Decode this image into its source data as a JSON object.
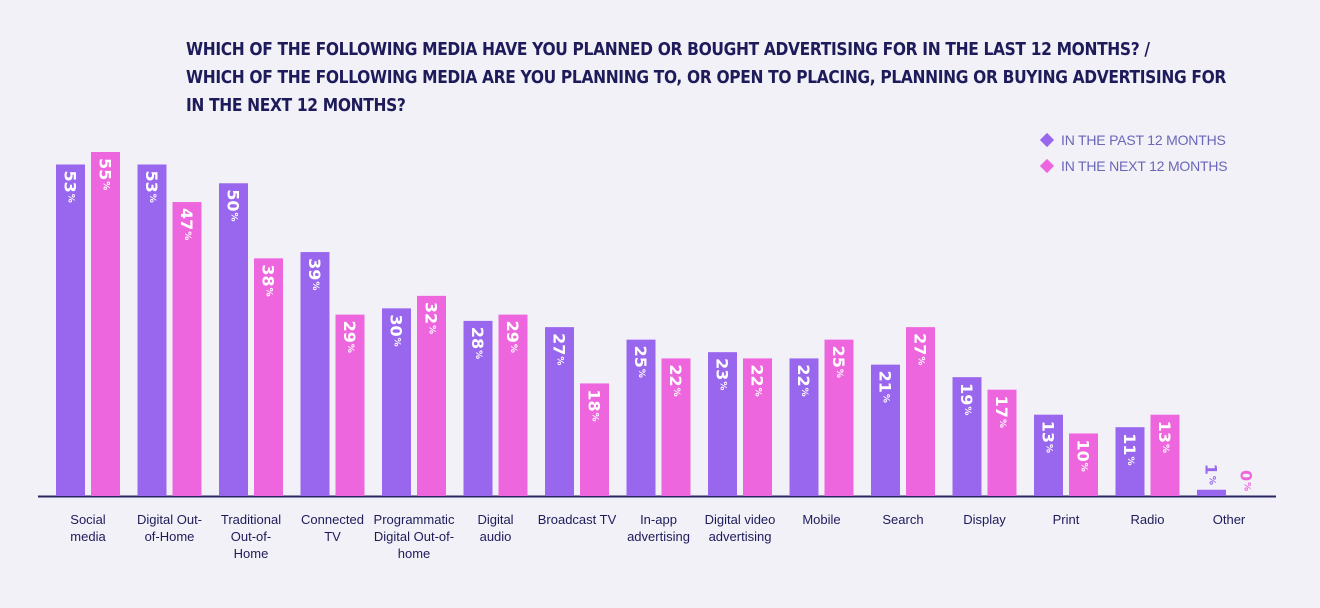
{
  "title_lines": [
    "WHICH OF THE FOLLOWING MEDIA HAVE YOU PLANNED OR BOUGHT ADVERTISING FOR IN THE LAST 12 MONTHS? /",
    "WHICH OF THE FOLLOWING MEDIA ARE YOU PLANNING TO, OR OPEN TO PLACING, PLANNING OR BUYING ADVERTISING FOR",
    "IN THE NEXT 12 MONTHS?"
  ],
  "legend": {
    "past": "IN THE PAST 12 MONTHS",
    "next": "IN THE NEXT 12 MONTHS"
  },
  "colors": {
    "past": "#9966ee",
    "next": "#ee66dd",
    "axis": "#2a2660",
    "label": "#1e1b5a",
    "background": "#f2f1f7"
  },
  "chart_data": {
    "type": "bar",
    "unit": "%",
    "categories": [
      [
        "Social",
        "media"
      ],
      [
        "Digital Out-",
        "of-Home"
      ],
      [
        "Traditional",
        "Out-of-",
        "Home"
      ],
      [
        "Connected",
        "TV"
      ],
      [
        "Programmatic",
        "Digital Out-of-",
        "home"
      ],
      [
        "Digital",
        "audio"
      ],
      [
        "Broadcast TV"
      ],
      [
        "In-app",
        "advertising"
      ],
      [
        "Digital video",
        "advertising"
      ],
      [
        "Mobile"
      ],
      [
        "Search"
      ],
      [
        "Display"
      ],
      [
        "Print"
      ],
      [
        "Radio"
      ],
      [
        "Other"
      ]
    ],
    "series": [
      {
        "name": "IN THE PAST 12 MONTHS",
        "values": [
          53,
          53,
          50,
          39,
          30,
          28,
          27,
          25,
          23,
          22,
          21,
          19,
          13,
          11,
          1
        ]
      },
      {
        "name": "IN THE NEXT 12 MONTHS",
        "values": [
          55,
          47,
          38,
          29,
          32,
          29,
          18,
          22,
          22,
          25,
          27,
          17,
          10,
          13,
          0
        ]
      }
    ],
    "ylim": [
      0,
      55
    ],
    "grid": false,
    "legend_position": "top-right"
  }
}
